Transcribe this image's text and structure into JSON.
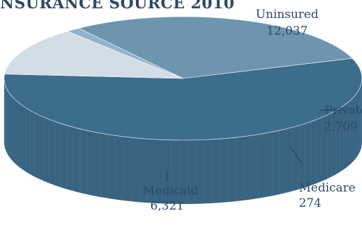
{
  "chart_data": {
    "type": "pie",
    "title": "NSURANCE SOURCE 2010",
    "unit": "",
    "categories": [
      "Uninsured",
      "Private",
      "Medicare",
      "Medicaid"
    ],
    "values": [
      12037,
      2709,
      274,
      6321
    ],
    "value_labels": [
      "12,037",
      "2,709",
      "274",
      "6,321"
    ],
    "style": "3d",
    "colors": {
      "Uninsured": "#3d6d8c",
      "Private": "#d2dde6",
      "Medicare": "#8fb3cb",
      "Medicaid": "#6e95ae"
    },
    "label_color": "#2e4a68",
    "leader_color": "#2e4a68"
  }
}
